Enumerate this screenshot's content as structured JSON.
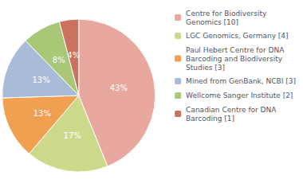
{
  "chart_data": {
    "type": "pie",
    "categories": [
      "Centre for Biodiversity\nGenomics [10]",
      "LGC Genomics, Germany [4]",
      "Paul Hebert Centre for DNA\nBarcoding and Biodiversity\nStudies [3]",
      "Mined from GenBank, NCBI [3]",
      "Wellcome Sanger Institute [2]",
      "Canadian Centre for DNA\nBarcoding [1]"
    ],
    "values": [
      43,
      17,
      13,
      13,
      8,
      4
    ],
    "value_labels": [
      "43%",
      "17%",
      "13%",
      "13%",
      "8%",
      "4%"
    ],
    "colors": [
      "#e8a8a0",
      "#cdd98a",
      "#f0a050",
      "#a8bcd8",
      "#a8c878",
      "#cc7060"
    ],
    "data_labels": true,
    "legend": "right"
  }
}
